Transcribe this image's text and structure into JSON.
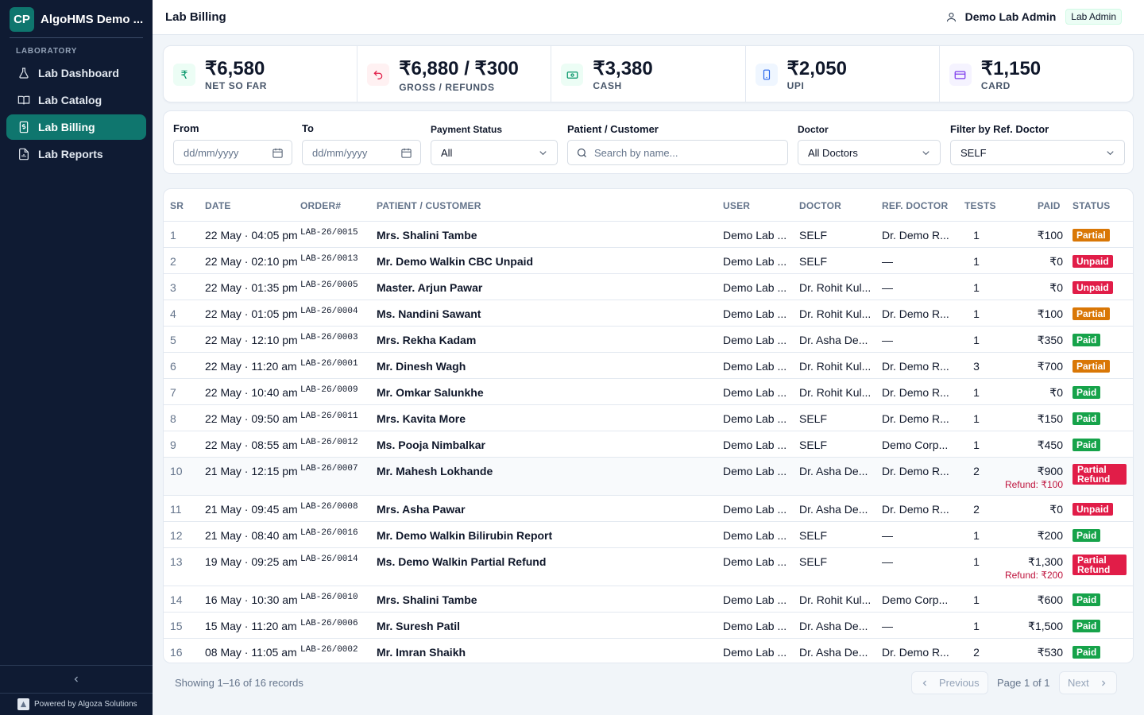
{
  "sidebar": {
    "logo": "CP",
    "app_name": "AlgoHMS Demo ...",
    "section": "LABORATORY",
    "items": [
      {
        "label": "Lab Dashboard",
        "icon": "flask-icon",
        "active": false
      },
      {
        "label": "Lab Catalog",
        "icon": "book-icon",
        "active": false
      },
      {
        "label": "Lab Billing",
        "icon": "bill-icon",
        "active": true
      },
      {
        "label": "Lab Reports",
        "icon": "report-icon",
        "active": false
      }
    ],
    "powered_by": "Powered by Algoza Solutions"
  },
  "header": {
    "title": "Lab Billing",
    "user_name": "Demo Lab Admin",
    "role": "Lab Admin"
  },
  "stats": [
    {
      "value": "₹6,580",
      "label": "NET SO FAR",
      "icon": "rupee-icon",
      "color": "#059669",
      "bg": "#ecfdf5"
    },
    {
      "value": "₹6,880 / ₹300",
      "label": "GROSS / REFUNDS",
      "icon": "undo-icon",
      "color": "#e11d48",
      "bg": "#fff1f2"
    },
    {
      "value": "₹3,380",
      "label": "CASH",
      "icon": "cash-icon",
      "color": "#059669",
      "bg": "#ecfdf5"
    },
    {
      "value": "₹2,050",
      "label": "UPI",
      "icon": "phone-icon",
      "color": "#2563eb",
      "bg": "#eff6ff"
    },
    {
      "value": "₹1,150",
      "label": "CARD",
      "icon": "card-icon",
      "color": "#7c3aed",
      "bg": "#f5f3ff"
    }
  ],
  "filters": {
    "from_label": "From",
    "from_placeholder": "dd/mm/yyyy",
    "to_label": "To",
    "to_placeholder": "dd/mm/yyyy",
    "payment_label": "Payment Status",
    "payment_value": "All",
    "patient_label": "Patient / Customer",
    "patient_placeholder": "Search by name...",
    "doctor_label": "Doctor",
    "doctor_value": "All Doctors",
    "ref_label": "Filter by Ref. Doctor",
    "ref_value": "SELF"
  },
  "table": {
    "headers": [
      "SR",
      "DATE",
      "ORDER#",
      "PATIENT / CUSTOMER",
      "USER",
      "DOCTOR",
      "REF. DOCTOR",
      "TESTS",
      "PAID",
      "STATUS"
    ],
    "rows": [
      {
        "sr": "1",
        "date": "22 May · 04:05 pm",
        "order": "LAB-26/0015",
        "patient": "Mrs. Shalini Tambe",
        "user": "Demo Lab ...",
        "doctor": "SELF",
        "ref": "Dr. Demo R...",
        "tests": "1",
        "paid": "₹100",
        "refund": "",
        "status": "Partial",
        "status_type": "partial"
      },
      {
        "sr": "2",
        "date": "22 May · 02:10 pm",
        "order": "LAB-26/0013",
        "patient": "Mr. Demo Walkin CBC Unpaid",
        "user": "Demo Lab ...",
        "doctor": "SELF",
        "ref": "—",
        "tests": "1",
        "paid": "₹0",
        "refund": "",
        "status": "Unpaid",
        "status_type": "unpaid"
      },
      {
        "sr": "3",
        "date": "22 May · 01:35 pm",
        "order": "LAB-26/0005",
        "patient": "Master. Arjun Pawar",
        "user": "Demo Lab ...",
        "doctor": "Dr. Rohit Kul...",
        "ref": "—",
        "tests": "1",
        "paid": "₹0",
        "refund": "",
        "status": "Unpaid",
        "status_type": "unpaid"
      },
      {
        "sr": "4",
        "date": "22 May · 01:05 pm",
        "order": "LAB-26/0004",
        "patient": "Ms. Nandini Sawant",
        "user": "Demo Lab ...",
        "doctor": "Dr. Rohit Kul...",
        "ref": "Dr. Demo R...",
        "tests": "1",
        "paid": "₹100",
        "refund": "",
        "status": "Partial",
        "status_type": "partial"
      },
      {
        "sr": "5",
        "date": "22 May · 12:10 pm",
        "order": "LAB-26/0003",
        "patient": "Mrs. Rekha Kadam",
        "user": "Demo Lab ...",
        "doctor": "Dr. Asha De...",
        "ref": "—",
        "tests": "1",
        "paid": "₹350",
        "refund": "",
        "status": "Paid",
        "status_type": "paid"
      },
      {
        "sr": "6",
        "date": "22 May · 11:20 am",
        "order": "LAB-26/0001",
        "patient": "Mr. Dinesh Wagh",
        "user": "Demo Lab ...",
        "doctor": "Dr. Rohit Kul...",
        "ref": "Dr. Demo R...",
        "tests": "3",
        "paid": "₹700",
        "refund": "",
        "status": "Partial",
        "status_type": "partial"
      },
      {
        "sr": "7",
        "date": "22 May · 10:40 am",
        "order": "LAB-26/0009",
        "patient": "Mr. Omkar Salunkhe",
        "user": "Demo Lab ...",
        "doctor": "Dr. Rohit Kul...",
        "ref": "Dr. Demo R...",
        "tests": "1",
        "paid": "₹0",
        "refund": "",
        "status": "Paid",
        "status_type": "paid"
      },
      {
        "sr": "8",
        "date": "22 May · 09:50 am",
        "order": "LAB-26/0011",
        "patient": "Mrs. Kavita More",
        "user": "Demo Lab ...",
        "doctor": "SELF",
        "ref": "Dr. Demo R...",
        "tests": "1",
        "paid": "₹150",
        "refund": "",
        "status": "Paid",
        "status_type": "paid"
      },
      {
        "sr": "9",
        "date": "22 May · 08:55 am",
        "order": "LAB-26/0012",
        "patient": "Ms. Pooja Nimbalkar",
        "user": "Demo Lab ...",
        "doctor": "SELF",
        "ref": "Demo Corp...",
        "tests": "1",
        "paid": "₹450",
        "refund": "",
        "status": "Paid",
        "status_type": "paid"
      },
      {
        "sr": "10",
        "date": "21 May · 12:15 pm",
        "order": "LAB-26/0007",
        "patient": "Mr. Mahesh Lokhande",
        "user": "Demo Lab ...",
        "doctor": "Dr. Asha De...",
        "ref": "Dr. Demo R...",
        "tests": "2",
        "paid": "₹900",
        "refund": "Refund: ₹100",
        "status": "Partial Refund",
        "status_type": "prefund"
      },
      {
        "sr": "11",
        "date": "21 May · 09:45 am",
        "order": "LAB-26/0008",
        "patient": "Mrs. Asha Pawar",
        "user": "Demo Lab ...",
        "doctor": "Dr. Asha De...",
        "ref": "Dr. Demo R...",
        "tests": "2",
        "paid": "₹0",
        "refund": "",
        "status": "Unpaid",
        "status_type": "unpaid"
      },
      {
        "sr": "12",
        "date": "21 May · 08:40 am",
        "order": "LAB-26/0016",
        "patient": "Mr. Demo Walkin Bilirubin Report",
        "user": "Demo Lab ...",
        "doctor": "SELF",
        "ref": "—",
        "tests": "1",
        "paid": "₹200",
        "refund": "",
        "status": "Paid",
        "status_type": "paid"
      },
      {
        "sr": "13",
        "date": "19 May · 09:25 am",
        "order": "LAB-26/0014",
        "patient": "Ms. Demo Walkin Partial Refund",
        "user": "Demo Lab ...",
        "doctor": "SELF",
        "ref": "—",
        "tests": "1",
        "paid": "₹1,300",
        "refund": "Refund: ₹200",
        "status": "Partial Refund",
        "status_type": "prefund"
      },
      {
        "sr": "14",
        "date": "16 May · 10:30 am",
        "order": "LAB-26/0010",
        "patient": "Mrs. Shalini Tambe",
        "user": "Demo Lab ...",
        "doctor": "Dr. Rohit Kul...",
        "ref": "Demo Corp...",
        "tests": "1",
        "paid": "₹600",
        "refund": "",
        "status": "Paid",
        "status_type": "paid"
      },
      {
        "sr": "15",
        "date": "15 May · 11:20 am",
        "order": "LAB-26/0006",
        "patient": "Mr. Suresh Patil",
        "user": "Demo Lab ...",
        "doctor": "Dr. Asha De...",
        "ref": "—",
        "tests": "1",
        "paid": "₹1,500",
        "refund": "",
        "status": "Paid",
        "status_type": "paid"
      },
      {
        "sr": "16",
        "date": "08 May · 11:05 am",
        "order": "LAB-26/0002",
        "patient": "Mr. Imran Shaikh",
        "user": "Demo Lab ...",
        "doctor": "Dr. Asha De...",
        "ref": "Dr. Demo R...",
        "tests": "2",
        "paid": "₹530",
        "refund": "",
        "status": "Paid",
        "status_type": "paid"
      }
    ]
  },
  "footer": {
    "showing": "Showing 1–16 of 16 records",
    "previous": "Previous",
    "page_info": "Page 1 of 1",
    "next": "Next"
  }
}
